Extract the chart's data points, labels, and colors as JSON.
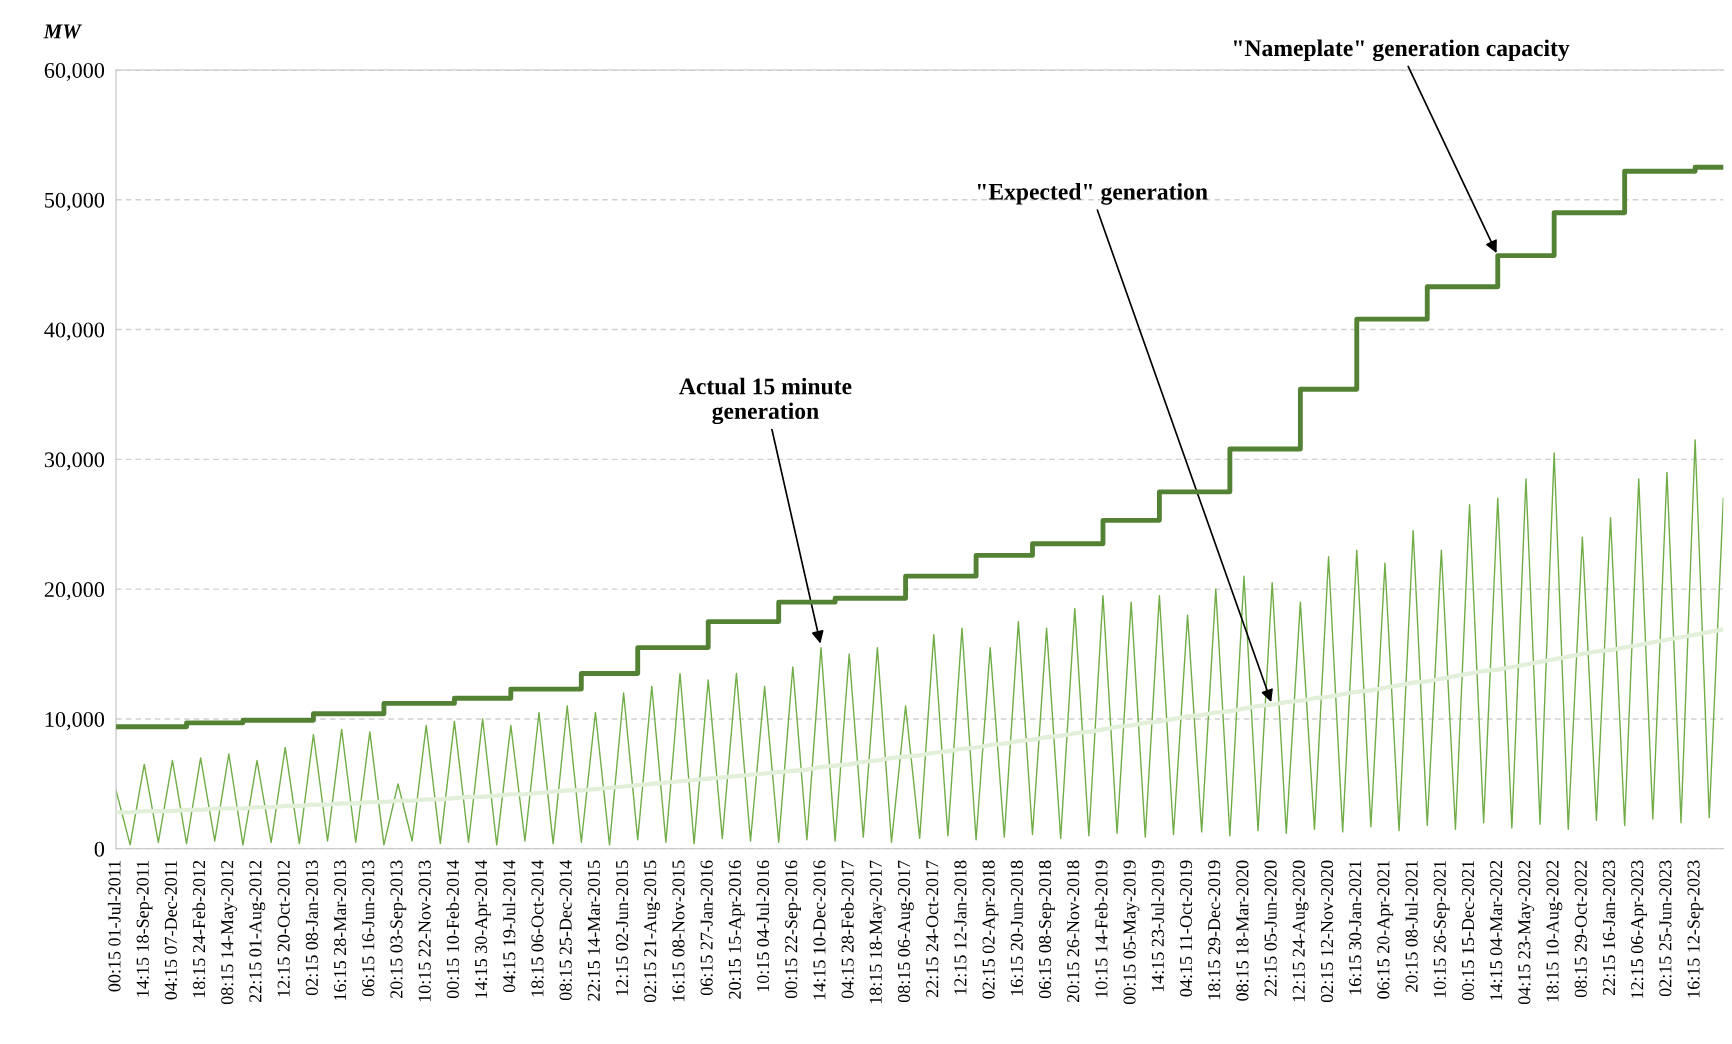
{
  "chart_data": {
    "type": "line",
    "ylabel": "MW",
    "categories": [
      "00:15 01-Jul-2011",
      null,
      "14:15 18-Sep-2011",
      null,
      "04:15 07-Dec-2011",
      null,
      "18:15 24-Feb-2012",
      null,
      "08:15 14-May-2012",
      null,
      "22:15 01-Aug-2012",
      null,
      "12:15 20-Oct-2012",
      null,
      "02:15 08-Jan-2013",
      null,
      "16:15 28-Mar-2013",
      null,
      "06:15 16-Jun-2013",
      null,
      "20:15 03-Sep-2013",
      null,
      "10:15 22-Nov-2013",
      null,
      "00:15 10-Feb-2014",
      null,
      "14:15 30-Apr-2014",
      null,
      "04:15 19-Jul-2014",
      null,
      "18:15 06-Oct-2014",
      null,
      "08:15 25-Dec-2014",
      null,
      "22:15 14-Mar-2015",
      null,
      "12:15 02-Jun-2015",
      null,
      "02:15 21-Aug-2015",
      null,
      "16:15 08-Nov-2015",
      null,
      "06:15 27-Jan-2016",
      null,
      "20:15 15-Apr-2016",
      null,
      "10:15 04-Jul-2016",
      null,
      "00:15 22-Sep-2016",
      null,
      "14:15 10-Dec-2016",
      null,
      "04:15 28-Feb-2017",
      null,
      "18:15 18-May-2017",
      null,
      "08:15 06-Aug-2017",
      null,
      "22:15 24-Oct-2017",
      null,
      "12:15 12-Jan-2018",
      null,
      "02:15 02-Apr-2018",
      null,
      "16:15 20-Jun-2018",
      null,
      "06:15 08-Sep-2018",
      null,
      "20:15 26-Nov-2018",
      null,
      "10:15 14-Feb-2019",
      null,
      "00:15 05-May-2019",
      null,
      "14:15 23-Jul-2019",
      null,
      "04:15 11-Oct-2019",
      null,
      "18:15 29-Dec-2019",
      null,
      "08:15 18-Mar-2020",
      null,
      "22:15 05-Jun-2020",
      null,
      "12:15 24-Aug-2020",
      null,
      "02:15 12-Nov-2020",
      null,
      "16:15 30-Jan-2021",
      null,
      "06:15 20-Apr-2021",
      null,
      "20:15 08-Jul-2021",
      null,
      "10:15 26-Sep-2021",
      null,
      "00:15 15-Dec-2021",
      null,
      "14:15 04-Mar-2022",
      null,
      "04:15 23-May-2022",
      null,
      "18:15 10-Aug-2022",
      null,
      "08:15 29-Oct-2022",
      null,
      "22:15 16-Jan-2023",
      null,
      "12:15 06-Apr-2023",
      null,
      "02:15 25-Jun-2023",
      null,
      "16:15 12-Sep-2023",
      null,
      null
    ],
    "series": [
      {
        "color": "#70ad47",
        "values": [
          4500,
          300,
          6500,
          500,
          6800,
          400,
          7000,
          600,
          7300,
          300,
          6800,
          500,
          7800,
          400,
          8800,
          600,
          9200,
          500,
          9000,
          300,
          5000,
          600,
          9500,
          400,
          9800,
          500,
          10000,
          300,
          9500,
          600,
          10500,
          400,
          11000,
          500,
          10500,
          300,
          12000,
          700,
          12500,
          500,
          13500,
          400,
          13000,
          800,
          13500,
          600,
          12500,
          500,
          14000,
          700,
          15500,
          600,
          15000,
          900,
          15500,
          500,
          11000,
          800,
          16500,
          1000,
          17000,
          700,
          15500,
          900,
          17500,
          1100,
          17000,
          800,
          18500,
          1000,
          19500,
          1200,
          19000,
          900,
          19500,
          1100,
          18000,
          1300,
          20000,
          1000,
          21000,
          1400,
          20500,
          1200,
          19000,
          1500,
          22500,
          1300,
          23000,
          1700,
          22000,
          1400,
          24500,
          1800,
          23000,
          1500,
          26500,
          2000,
          27000,
          1600,
          28500,
          1900,
          30500,
          1500,
          24000,
          2200,
          25500,
          1800,
          28500,
          2300,
          29000,
          2000,
          31500,
          2400,
          27000
        ]
      },
      {
        "type": "line",
        "color": "#e2efd9",
        "values": [
          2800,
          2800,
          2900,
          2900,
          2900,
          3000,
          3000,
          3100,
          3100,
          3100,
          3200,
          3200,
          3300,
          3300,
          3400,
          3400,
          3500,
          3500,
          3600,
          3600,
          3700,
          3700,
          3800,
          3800,
          3900,
          4000,
          4000,
          4100,
          4200,
          4200,
          4300,
          4400,
          4500,
          4500,
          4600,
          4700,
          4800,
          4900,
          5000,
          5100,
          5200,
          5300,
          5400,
          5500,
          5600,
          5700,
          5800,
          5900,
          6000,
          6100,
          6300,
          6400,
          6500,
          6700,
          6800,
          7000,
          7100,
          7200,
          7400,
          7500,
          7700,
          7800,
          8000,
          8100,
          8300,
          8400,
          8600,
          8700,
          8900,
          9000,
          9200,
          9400,
          9500,
          9700,
          9800,
          10000,
          10200,
          10300,
          10500,
          10600,
          10800,
          11000,
          11100,
          11300,
          11400,
          11600,
          11700,
          11900,
          12100,
          12200,
          12400,
          12600,
          12800,
          12900,
          13100,
          13300,
          13500,
          13700,
          13800,
          14000,
          14200,
          14400,
          14600,
          14800,
          15000,
          15200,
          15300,
          15500,
          15700,
          15900,
          16100,
          16300,
          16500,
          16700,
          16900
        ]
      },
      {
        "type": "step",
        "color": "#548235",
        "values": [
          9400,
          9400,
          9400,
          9400,
          9400,
          9700,
          9700,
          9700,
          9700,
          9900,
          9900,
          9900,
          9900,
          9900,
          10400,
          10400,
          10400,
          10400,
          10400,
          11200,
          11200,
          11200,
          11200,
          11200,
          11600,
          11600,
          11600,
          11600,
          12300,
          12300,
          12300,
          12300,
          12300,
          13500,
          13500,
          13500,
          13500,
          15500,
          15500,
          15500,
          15500,
          15500,
          17500,
          17500,
          17500,
          17500,
          17500,
          19000,
          19000,
          19000,
          19000,
          19300,
          19300,
          19300,
          19300,
          19300,
          21000,
          21000,
          21000,
          21000,
          21000,
          22600,
          22600,
          22600,
          22600,
          23500,
          23500,
          23500,
          23500,
          23500,
          25300,
          25300,
          25300,
          25300,
          27500,
          27500,
          27500,
          27500,
          27500,
          30800,
          30800,
          30800,
          30800,
          30800,
          35400,
          35400,
          35400,
          35400,
          40800,
          40800,
          40800,
          40800,
          40800,
          43300,
          43300,
          43300,
          43300,
          43300,
          45700,
          45700,
          45700,
          45700,
          49000,
          49000,
          49000,
          49000,
          49000,
          52200,
          52200,
          52200,
          52200,
          52200,
          52500,
          52500,
          52500
        ]
      }
    ],
    "ylim": [
      0,
      60000
    ],
    "yticks": [
      {
        "value": 0,
        "label": "0"
      },
      {
        "value": 10000,
        "label": "10,000"
      },
      {
        "value": 20000,
        "label": "20,000"
      },
      {
        "value": 30000,
        "label": "30,000"
      },
      {
        "value": 40000,
        "label": "40,000"
      },
      {
        "value": 50000,
        "label": "50,000"
      },
      {
        "value": 60000,
        "label": "60,000"
      }
    ],
    "grid": "y",
    "line_style": "solid",
    "marker": "none",
    "annotations": [
      {
        "text": "Actual 15 minute\ngeneration",
        "x": "14:15 10-Dec-2016",
        "y": 15600
      },
      {
        "text": "\"Expected\" generation",
        "x": "22:15 05-Jun-2020",
        "y": 11100
      },
      {
        "text": "\"Nameplate\" generation capacity",
        "x": "14:15 04-Mar-2022",
        "y": 45700
      }
    ]
  }
}
